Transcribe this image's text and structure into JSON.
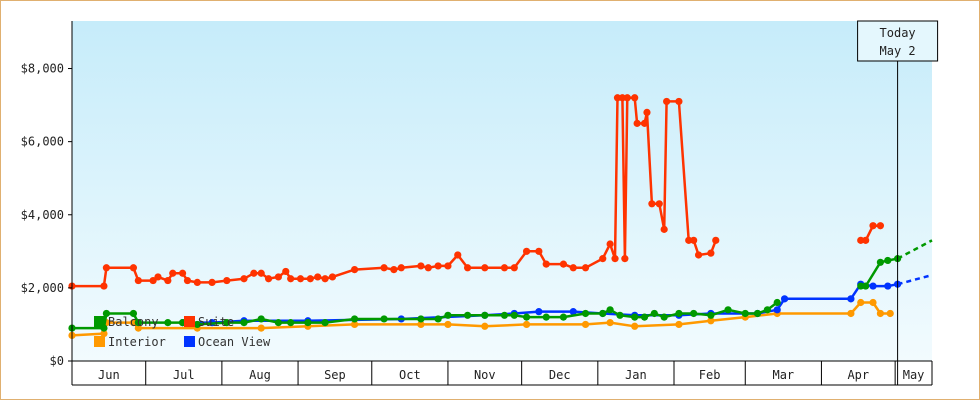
{
  "chart_data": {
    "type": "line",
    "title": "",
    "xlabel": "",
    "ylabel": "",
    "ylim": [
      0,
      9300
    ],
    "yticks": [
      0,
      2000,
      4000,
      6000,
      8000
    ],
    "ytick_labels": [
      "$0",
      "$2,000",
      "$4,000",
      "$6,000",
      "$8,000"
    ],
    "month_labels": [
      "Jun",
      "Jul",
      "Aug",
      "Sep",
      "Oct",
      "Nov",
      "Dec",
      "Jan",
      "Feb",
      "Mar",
      "Apr",
      "May"
    ],
    "month_starts": [
      "2023-06-01",
      "2023-07-01",
      "2023-08-01",
      "2023-09-01",
      "2023-10-01",
      "2023-11-01",
      "2023-12-01",
      "2024-01-01",
      "2024-02-01",
      "2024-03-01",
      "2024-04-01",
      "2024-05-01"
    ],
    "x_range": [
      "2023-06-01",
      "2024-05-16"
    ],
    "today": {
      "label": "Today",
      "date_label": "May 2",
      "date": "2024-05-02"
    },
    "legend": {
      "placement": "bottom-left"
    },
    "grid": false,
    "series": [
      {
        "name": "Suite",
        "color": "#ff3300",
        "points": [
          [
            "2023-06-01",
            2050
          ],
          [
            "2023-06-14",
            2050
          ],
          [
            "2023-06-15",
            2550
          ],
          [
            "2023-06-26",
            2550
          ],
          [
            "2023-06-28",
            2200
          ],
          [
            "2023-07-04",
            2200
          ],
          [
            "2023-07-06",
            2300
          ],
          [
            "2023-07-10",
            2200
          ],
          [
            "2023-07-12",
            2400
          ],
          [
            "2023-07-16",
            2400
          ],
          [
            "2023-07-18",
            2200
          ],
          [
            "2023-07-22",
            2150
          ],
          [
            "2023-07-28",
            2150
          ],
          [
            "2023-08-03",
            2200
          ],
          [
            "2023-08-10",
            2250
          ],
          [
            "2023-08-14",
            2400
          ],
          [
            "2023-08-17",
            2400
          ],
          [
            "2023-08-20",
            2250
          ],
          [
            "2023-08-24",
            2300
          ],
          [
            "2023-08-27",
            2450
          ],
          [
            "2023-08-29",
            2250
          ],
          [
            "2023-09-02",
            2250
          ],
          [
            "2023-09-06",
            2250
          ],
          [
            "2023-09-09",
            2300
          ],
          [
            "2023-09-12",
            2250
          ],
          [
            "2023-09-15",
            2300
          ],
          [
            "2023-09-24",
            2500
          ],
          [
            "2023-10-06",
            2550
          ],
          [
            "2023-10-10",
            2500
          ],
          [
            "2023-10-13",
            2550
          ],
          [
            "2023-10-21",
            2600
          ],
          [
            "2023-10-24",
            2550
          ],
          [
            "2023-10-28",
            2600
          ],
          [
            "2023-11-01",
            2600
          ],
          [
            "2023-11-05",
            2900
          ],
          [
            "2023-11-09",
            2550
          ],
          [
            "2023-11-16",
            2550
          ],
          [
            "2023-11-24",
            2550
          ],
          [
            "2023-11-28",
            2550
          ],
          [
            "2023-12-03",
            3000
          ],
          [
            "2023-12-08",
            3000
          ],
          [
            "2023-12-11",
            2650
          ],
          [
            "2023-12-18",
            2650
          ],
          [
            "2023-12-22",
            2550
          ],
          [
            "2023-12-27",
            2550
          ],
          [
            "2024-01-03",
            2800
          ],
          [
            "2024-01-06",
            3200
          ],
          [
            "2024-01-08",
            2800
          ],
          [
            "2024-01-09",
            7200
          ],
          [
            "2024-01-11",
            7200
          ],
          [
            "2024-01-12",
            2800
          ],
          [
            "2024-01-13",
            7200
          ],
          [
            "2024-01-16",
            7200
          ],
          [
            "2024-01-17",
            6500
          ],
          [
            "2024-01-20",
            6500
          ],
          [
            "2024-01-21",
            6800
          ],
          [
            "2024-01-23",
            4300
          ],
          [
            "2024-01-26",
            4300
          ],
          [
            "2024-01-28",
            3600
          ],
          [
            "2024-01-29",
            7100
          ],
          [
            "2024-02-03",
            7100
          ],
          [
            "2024-02-07",
            3300
          ],
          [
            "2024-02-09",
            3300
          ],
          [
            "2024-02-11",
            2900
          ],
          [
            "2024-02-16",
            2950
          ],
          [
            "2024-02-18",
            3300
          ]
        ],
        "points_b": [
          [
            "2024-04-17",
            3300
          ],
          [
            "2024-04-19",
            3300
          ],
          [
            "2024-04-22",
            3700
          ],
          [
            "2024-04-25",
            3700
          ]
        ]
      },
      {
        "name": "Balcony",
        "color": "#009900",
        "points": [
          [
            "2023-06-01",
            900
          ],
          [
            "2023-06-14",
            900
          ],
          [
            "2023-06-15",
            1300
          ],
          [
            "2023-06-26",
            1300
          ],
          [
            "2023-06-28",
            1050
          ],
          [
            "2023-07-10",
            1050
          ],
          [
            "2023-07-16",
            1050
          ],
          [
            "2023-07-22",
            1000
          ],
          [
            "2023-08-03",
            1050
          ],
          [
            "2023-08-10",
            1050
          ],
          [
            "2023-08-17",
            1150
          ],
          [
            "2023-08-24",
            1050
          ],
          [
            "2023-08-29",
            1050
          ],
          [
            "2023-09-05",
            1050
          ],
          [
            "2023-09-12",
            1050
          ],
          [
            "2023-09-24",
            1150
          ],
          [
            "2023-10-06",
            1150
          ],
          [
            "2023-10-21",
            1150
          ],
          [
            "2023-10-28",
            1150
          ],
          [
            "2023-11-01",
            1250
          ],
          [
            "2023-11-09",
            1250
          ],
          [
            "2023-11-16",
            1250
          ],
          [
            "2023-11-24",
            1250
          ],
          [
            "2023-11-28",
            1250
          ],
          [
            "2023-12-03",
            1200
          ],
          [
            "2023-12-11",
            1200
          ],
          [
            "2023-12-18",
            1200
          ],
          [
            "2023-12-27",
            1300
          ],
          [
            "2024-01-03",
            1300
          ],
          [
            "2024-01-06",
            1400
          ],
          [
            "2024-01-10",
            1250
          ],
          [
            "2024-01-16",
            1200
          ],
          [
            "2024-01-20",
            1200
          ],
          [
            "2024-01-24",
            1300
          ],
          [
            "2024-01-28",
            1200
          ],
          [
            "2024-02-03",
            1300
          ],
          [
            "2024-02-09",
            1300
          ],
          [
            "2024-02-16",
            1250
          ],
          [
            "2024-02-23",
            1400
          ],
          [
            "2024-03-01",
            1300
          ],
          [
            "2024-03-06",
            1300
          ],
          [
            "2024-03-10",
            1400
          ],
          [
            "2024-03-14",
            1600
          ]
        ],
        "points_b": [
          [
            "2024-04-17",
            2050
          ],
          [
            "2024-04-19",
            2050
          ],
          [
            "2024-04-25",
            2700
          ],
          [
            "2024-04-28",
            2750
          ],
          [
            "2024-05-02",
            2800
          ]
        ],
        "projection": [
          [
            "2024-05-02",
            2800
          ],
          [
            "2024-05-16",
            3300
          ]
        ]
      },
      {
        "name": "Interior",
        "color": "#ff9900",
        "points": [
          [
            "2023-06-01",
            700
          ],
          [
            "2023-06-14",
            750
          ],
          [
            "2023-06-15",
            1050
          ],
          [
            "2023-06-26",
            1050
          ],
          [
            "2023-06-28",
            900
          ],
          [
            "2023-07-22",
            900
          ],
          [
            "2023-08-17",
            900
          ],
          [
            "2023-09-05",
            950
          ],
          [
            "2023-09-24",
            1000
          ],
          [
            "2023-10-21",
            1000
          ],
          [
            "2023-11-01",
            1000
          ],
          [
            "2023-11-16",
            950
          ],
          [
            "2023-12-03",
            1000
          ],
          [
            "2023-12-27",
            1000
          ],
          [
            "2024-01-06",
            1050
          ],
          [
            "2024-01-16",
            950
          ],
          [
            "2024-02-03",
            1000
          ],
          [
            "2024-02-16",
            1100
          ],
          [
            "2024-03-01",
            1200
          ],
          [
            "2024-03-14",
            1300
          ],
          [
            "2024-04-13",
            1300
          ],
          [
            "2024-04-17",
            1600
          ],
          [
            "2024-04-22",
            1600
          ],
          [
            "2024-04-25",
            1300
          ],
          [
            "2024-04-29",
            1300
          ]
        ]
      },
      {
        "name": "Ocean View",
        "color": "#0033ff",
        "points": [
          [
            "2023-07-16",
            1050
          ],
          [
            "2023-07-28",
            1050
          ],
          [
            "2023-08-10",
            1100
          ],
          [
            "2023-09-05",
            1100
          ],
          [
            "2023-10-13",
            1150
          ],
          [
            "2023-11-16",
            1250
          ],
          [
            "2023-11-28",
            1300
          ],
          [
            "2023-12-08",
            1350
          ],
          [
            "2023-12-22",
            1350
          ],
          [
            "2024-01-03",
            1300
          ],
          [
            "2024-01-16",
            1250
          ],
          [
            "2024-02-03",
            1250
          ],
          [
            "2024-02-16",
            1300
          ],
          [
            "2024-03-06",
            1300
          ],
          [
            "2024-03-14",
            1400
          ],
          [
            "2024-03-17",
            1700
          ],
          [
            "2024-04-13",
            1700
          ],
          [
            "2024-04-17",
            2100
          ],
          [
            "2024-04-22",
            2050
          ],
          [
            "2024-04-28",
            2050
          ],
          [
            "2024-05-02",
            2100
          ]
        ],
        "projection": [
          [
            "2024-05-02",
            2100
          ],
          [
            "2024-05-16",
            2350
          ]
        ]
      }
    ]
  }
}
